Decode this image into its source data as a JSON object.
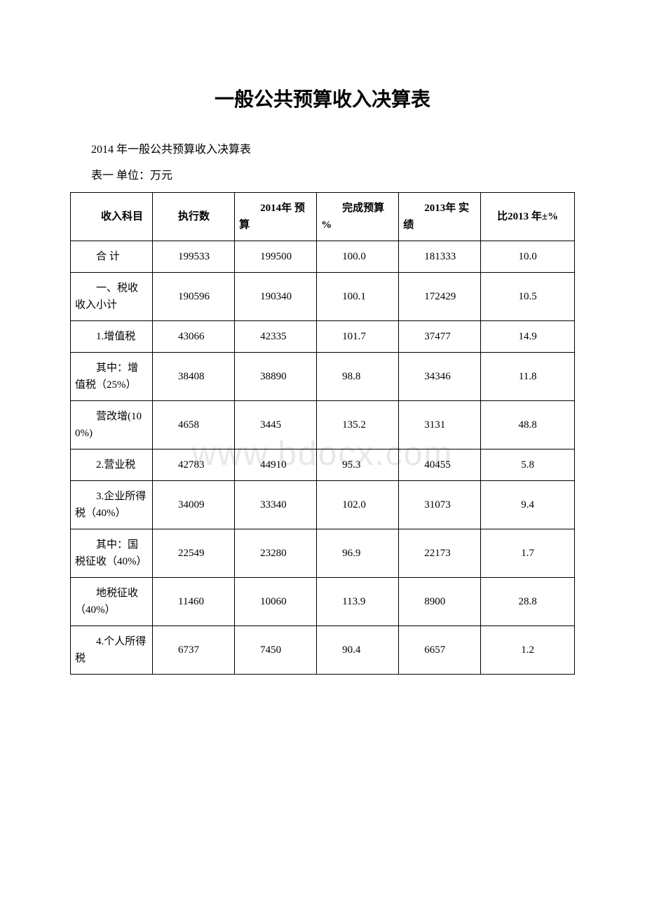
{
  "title": "一般公共预算收入决算表",
  "subtitle": "2014 年一般公共预算收入决算表",
  "meta": "表一 单位：万元",
  "watermark": "www.bdocx.com",
  "table": {
    "columns": [
      "收入科目",
      "执行数",
      "2014年\n预算",
      "完成预算\n%",
      "2013年\n实绩",
      "比2013 年±%"
    ],
    "rows": [
      {
        "c1": "合 计",
        "c2": "199533",
        "c3": "199500",
        "c4": "100.0",
        "c5": "181333",
        "c6": "10.0"
      },
      {
        "c1": "一、税收收入小计",
        "c2": "190596",
        "c3": "190340",
        "c4": "100.1",
        "c5": "172429",
        "c6": "10.5"
      },
      {
        "c1": "1.增值税",
        "c2": "43066",
        "c3": "42335",
        "c4": "101.7",
        "c5": "37477",
        "c6": "14.9"
      },
      {
        "c1": "其中：增值税（25%）",
        "c2": "38408",
        "c3": "38890",
        "c4": "98.8",
        "c5": "34346",
        "c6": "11.8"
      },
      {
        "c1": "营改增(100%)",
        "c2": "4658",
        "c3": "3445",
        "c4": "135.2",
        "c5": "3131",
        "c6": "48.8"
      },
      {
        "c1": "2.营业税",
        "c2": "42783",
        "c3": "44910",
        "c4": "95.3",
        "c5": "40455",
        "c6": "5.8"
      },
      {
        "c1": "3.企业所得税（40%）",
        "c2": "34009",
        "c3": "33340",
        "c4": "102.0",
        "c5": "31073",
        "c6": "9.4"
      },
      {
        "c1": "其中：国税征收（40%）",
        "c2": "22549",
        "c3": "23280",
        "c4": "96.9",
        "c5": "22173",
        "c6": "1.7"
      },
      {
        "c1": "地税征收（40%）",
        "c2": "11460",
        "c3": "10060",
        "c4": "113.9",
        "c5": "8900",
        "c6": "28.8"
      },
      {
        "c1": "4.个人所得税",
        "c2": "6737",
        "c3": "7450",
        "c4": "90.4",
        "c5": "6657",
        "c6": "1.2"
      }
    ]
  }
}
